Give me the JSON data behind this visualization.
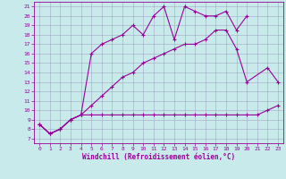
{
  "xlabel": "Windchill (Refroidissement éolien,°C)",
  "bg_color": "#c8eaea",
  "line_color": "#990099",
  "grid_color": "#9999bb",
  "xlim": [
    -0.5,
    23.5
  ],
  "ylim": [
    6.5,
    21.5
  ],
  "yticks": [
    7,
    8,
    9,
    10,
    11,
    12,
    13,
    14,
    15,
    16,
    17,
    18,
    19,
    20,
    21
  ],
  "xticks": [
    0,
    1,
    2,
    3,
    4,
    5,
    6,
    7,
    8,
    9,
    10,
    11,
    12,
    13,
    14,
    15,
    16,
    17,
    18,
    19,
    20,
    21,
    22,
    23
  ],
  "line1_x": [
    0,
    1,
    2,
    3,
    4,
    5,
    6,
    7,
    8,
    9,
    10,
    11,
    12,
    13,
    14,
    15,
    16,
    17,
    18,
    19,
    20,
    21,
    22,
    23
  ],
  "line1_y": [
    8.5,
    7.5,
    8.0,
    9.0,
    9.5,
    9.5,
    9.5,
    9.5,
    9.5,
    9.5,
    9.5,
    9.5,
    9.5,
    9.5,
    9.5,
    9.5,
    9.5,
    9.5,
    9.5,
    9.5,
    9.5,
    9.5,
    10.0,
    10.5
  ],
  "line2_x": [
    0,
    1,
    2,
    3,
    4,
    5,
    6,
    7,
    8,
    9,
    10,
    11,
    12,
    13,
    14,
    15,
    16,
    17,
    18,
    19,
    20,
    22,
    23
  ],
  "line2_y": [
    8.5,
    7.5,
    8.0,
    9.0,
    9.5,
    10.5,
    11.5,
    12.5,
    13.5,
    14.0,
    15.0,
    15.5,
    16.0,
    16.5,
    17.0,
    17.0,
    17.5,
    18.5,
    18.5,
    16.5,
    13.0,
    14.5,
    13.0
  ],
  "line3_x": [
    0,
    1,
    2,
    3,
    4,
    5,
    6,
    7,
    8,
    9,
    10,
    11,
    12,
    13,
    14,
    15,
    16,
    17,
    18,
    19,
    20
  ],
  "line3_y": [
    8.5,
    7.5,
    8.0,
    9.0,
    9.5,
    16.0,
    17.0,
    17.5,
    18.0,
    19.0,
    18.0,
    20.0,
    21.0,
    17.5,
    21.0,
    20.5,
    20.0,
    20.0,
    20.5,
    18.5,
    20.0
  ]
}
